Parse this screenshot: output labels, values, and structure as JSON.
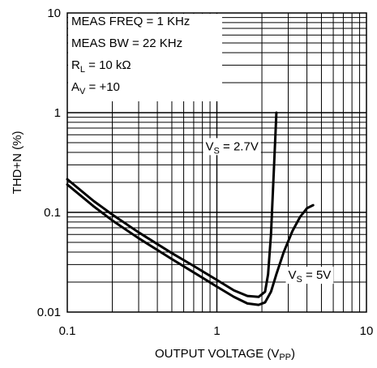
{
  "chart_data": {
    "type": "line",
    "title": "",
    "xlabel": "OUTPUT VOLTAGE (V",
    "xlabel_sub": "PP",
    "xlabel_end": ")",
    "ylabel": "THD+N (%)",
    "x_scale": "log",
    "y_scale": "log",
    "xlim": [
      0.1,
      10
    ],
    "ylim": [
      0.01,
      10
    ],
    "grid": true,
    "x_ticks": [
      {
        "value": 0.1,
        "label": "0.1"
      },
      {
        "value": 1,
        "label": "1"
      },
      {
        "value": 10,
        "label": "10"
      }
    ],
    "y_ticks": [
      {
        "value": 0.01,
        "label": "0.01"
      },
      {
        "value": 0.1,
        "label": "0.1"
      },
      {
        "value": 1,
        "label": "1"
      },
      {
        "value": 10,
        "label": "10"
      }
    ],
    "conditions": [
      {
        "text": "MEAS FREQ = 1 KHz"
      },
      {
        "text": "MEAS BW = 22 KHz"
      },
      {
        "main": "R",
        "sub": "L",
        "rest": " = 10 kΩ"
      },
      {
        "main": "A",
        "sub": "V",
        "rest": " = +10"
      }
    ],
    "series": [
      {
        "label_main": "V",
        "label_sub": "S",
        "label_rest": " = 2.7V",
        "label_at": {
          "x": 0.84,
          "y": 0.42
        },
        "x": [
          0.1,
          0.15,
          0.2,
          0.3,
          0.5,
          0.7,
          1.0,
          1.3,
          1.6,
          1.9,
          2.1,
          2.2,
          2.3,
          2.4,
          2.5
        ],
        "y": [
          0.215,
          0.13,
          0.095,
          0.063,
          0.039,
          0.029,
          0.021,
          0.0165,
          0.0145,
          0.0142,
          0.016,
          0.024,
          0.06,
          0.25,
          1.0
        ]
      },
      {
        "label_main": "V",
        "label_sub": "S",
        "label_rest": " = 5V",
        "label_at": {
          "x": 3.0,
          "y": 0.0215
        },
        "x": [
          0.1,
          0.15,
          0.2,
          0.3,
          0.5,
          0.7,
          1.0,
          1.3,
          1.6,
          1.9,
          2.1,
          2.3,
          2.5,
          2.8,
          3.2,
          3.6,
          4.0,
          4.4
        ],
        "y": [
          0.19,
          0.115,
          0.083,
          0.055,
          0.034,
          0.025,
          0.018,
          0.0142,
          0.0122,
          0.0118,
          0.0125,
          0.016,
          0.024,
          0.04,
          0.065,
          0.09,
          0.11,
          0.118
        ]
      }
    ]
  }
}
